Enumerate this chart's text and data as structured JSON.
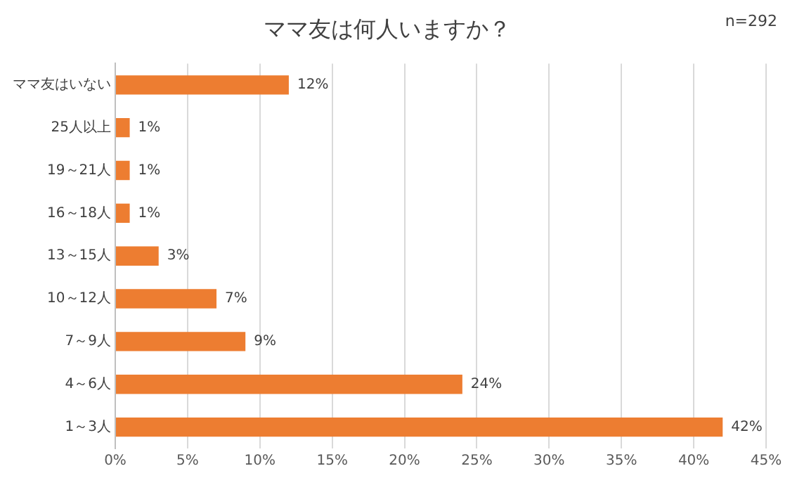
{
  "chart_data": {
    "type": "bar",
    "orientation": "horizontal",
    "title": "ママ友は何人いますか？",
    "categories": [
      "ママ友はいない",
      "25人以上",
      "19～21人",
      "16～18人",
      "13～15人",
      "10～12人",
      "7～9人",
      "4～6人",
      "1～3人"
    ],
    "values": [
      12,
      1,
      1,
      1,
      3,
      7,
      9,
      24,
      42
    ],
    "value_labels": [
      "12%",
      "1%",
      "1%",
      "1%",
      "3%",
      "7%",
      "9%",
      "24%",
      "42%"
    ],
    "color": "#ed7d31",
    "xlim": [
      0,
      45
    ],
    "xticks": [
      {
        "value": 0,
        "label": "0%"
      },
      {
        "value": 5,
        "label": "5%"
      },
      {
        "value": 10,
        "label": "10%"
      },
      {
        "value": 15,
        "label": "15%"
      },
      {
        "value": 20,
        "label": "20%"
      },
      {
        "value": 25,
        "label": "25%"
      },
      {
        "value": 30,
        "label": "30%"
      },
      {
        "value": 35,
        "label": "35%"
      },
      {
        "value": 40,
        "label": "40%"
      },
      {
        "value": 45,
        "label": "45%"
      }
    ],
    "grid": "x",
    "annotations": [
      "n=292"
    ]
  }
}
